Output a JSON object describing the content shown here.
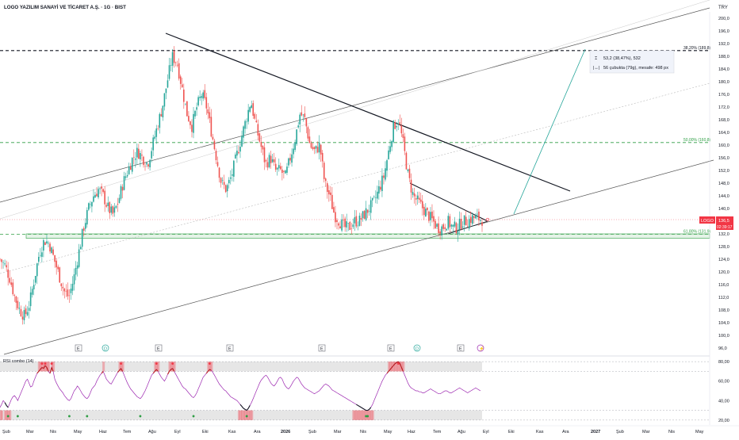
{
  "header": {
    "title": "LOGO YAZILIM SANAYİ VE TİCARET A.Ş. · 1G · BIST",
    "currency": "TRY"
  },
  "tooltip": {
    "line1": "53,2 (38,47%), 532",
    "line2": "56 çubukta (79g), mesafe: 498 px"
  },
  "price_marker": {
    "symbol": "LOGO",
    "price": "136,5",
    "countdown": "02:39:17"
  },
  "fib_levels": [
    {
      "label": "38,20% (189,8)",
      "value": 189.8
    },
    {
      "label": "50,00% (160,8)",
      "value": 160.8
    },
    {
      "label": "61,80% (131,9)",
      "value": 131.9
    }
  ],
  "event_markers": [
    "E",
    "D",
    "E",
    "E",
    "E",
    "E",
    "D",
    "E",
    "⚡"
  ],
  "rsi": {
    "title": "RSI combo (14)",
    "ticks": [
      "80,00",
      "60,00",
      "40,00",
      "20,00"
    ],
    "values": [
      33,
      36,
      40,
      38,
      35,
      33,
      37,
      41,
      44,
      45,
      43,
      40,
      44,
      48,
      52,
      56,
      60,
      62,
      58,
      54,
      55,
      60,
      64,
      68,
      70,
      72,
      74,
      73,
      76,
      74,
      70,
      68,
      74,
      70,
      62,
      58,
      55,
      52,
      50,
      48,
      45,
      43,
      41,
      40,
      42,
      46,
      50,
      52,
      55,
      53,
      50,
      47,
      45,
      43,
      42,
      44,
      48,
      52,
      54,
      56,
      60,
      63,
      66,
      68,
      70,
      66,
      62,
      60,
      58,
      57,
      60,
      63,
      66,
      69,
      71,
      73,
      70,
      66,
      62,
      58,
      55,
      52,
      50,
      48,
      46,
      44,
      43,
      42,
      44,
      47,
      50,
      54,
      58,
      62,
      66,
      68,
      70,
      72,
      70,
      67,
      64,
      62,
      60,
      63,
      67,
      70,
      72,
      73,
      70,
      67,
      64,
      61,
      58,
      55,
      53,
      52,
      50,
      48,
      46,
      44,
      43,
      45,
      48,
      52,
      56,
      60,
      64,
      66,
      68,
      70,
      72,
      71,
      69,
      66,
      63,
      60,
      57,
      55,
      53,
      51,
      50,
      48,
      46,
      44,
      43,
      42,
      41,
      40,
      38,
      36,
      34,
      32,
      31,
      30,
      32,
      35,
      38,
      42,
      46,
      50,
      54,
      58,
      61,
      63,
      65,
      66,
      64,
      61,
      58,
      56,
      55,
      57,
      60,
      63,
      64,
      62,
      58,
      55,
      53,
      52,
      54,
      57,
      60,
      62,
      64,
      63,
      60,
      57,
      55,
      53,
      52,
      51,
      50,
      49,
      48,
      47,
      48,
      49,
      50,
      52,
      54,
      56,
      57,
      56,
      55,
      53,
      51,
      50,
      49,
      48,
      47,
      46,
      45,
      44,
      43,
      42,
      41,
      40,
      39,
      38,
      37,
      36,
      35,
      34,
      33,
      32,
      31,
      30,
      30,
      31,
      33,
      36,
      40,
      44,
      48,
      52,
      56,
      60,
      63,
      66,
      68,
      70,
      72,
      74,
      76,
      78,
      79,
      80,
      78,
      74,
      70,
      66,
      62,
      58,
      55,
      53,
      52,
      51,
      50,
      50,
      49,
      49,
      48,
      48,
      49,
      50,
      51,
      52,
      51,
      50,
      49,
      48,
      47,
      47,
      48,
      49,
      50,
      50,
      49,
      48,
      48,
      49,
      50,
      51,
      52,
      53,
      52,
      51,
      50,
      49,
      48,
      49,
      50,
      51,
      52,
      53,
      52,
      51,
      50
    ]
  },
  "chart_data": {
    "type": "candlestick",
    "y_axis_ticks": [
      "200,0",
      "196,0",
      "192,0",
      "188,0",
      "184,0",
      "180,0",
      "176,0",
      "172,0",
      "168,0",
      "164,0",
      "160,0",
      "156,0",
      "152,0",
      "148,0",
      "144,0",
      "140,0",
      "136,0",
      "132,0",
      "128,0",
      "124,0",
      "120,0",
      "116,0",
      "112,0",
      "108,0",
      "104,0",
      "100,0",
      "96,0"
    ],
    "ylim": [
      96,
      202
    ],
    "x_axis_labels": [
      "Şub",
      "Mar",
      "Nis",
      "May",
      "Haz",
      "Tem",
      "Ağu",
      "Eyl",
      "Eki",
      "Kas",
      "Ara",
      "2026",
      "Şub",
      "Mar",
      "Nis",
      "May",
      "Haz",
      "Tem",
      "Ağu",
      "Eyl",
      "Eki",
      "Kas",
      "Ara",
      "2027",
      "Şub",
      "Mar",
      "Nis",
      "May"
    ],
    "last_price": 136.5,
    "close_path": [
      [
        0,
        124
      ],
      [
        2,
        122
      ],
      [
        4,
        118
      ],
      [
        6,
        112
      ],
      [
        8,
        108
      ],
      [
        10,
        106
      ],
      [
        12,
        110
      ],
      [
        14,
        118
      ],
      [
        16,
        126
      ],
      [
        18,
        130
      ],
      [
        20,
        129
      ],
      [
        22,
        124
      ],
      [
        24,
        119
      ],
      [
        26,
        114
      ],
      [
        28,
        112
      ],
      [
        30,
        118
      ],
      [
        32,
        126
      ],
      [
        34,
        134
      ],
      [
        36,
        140
      ],
      [
        38,
        144
      ],
      [
        40,
        146
      ],
      [
        42,
        144
      ],
      [
        44,
        140
      ],
      [
        46,
        138
      ],
      [
        48,
        142
      ],
      [
        50,
        148
      ],
      [
        52,
        152
      ],
      [
        54,
        156
      ],
      [
        56,
        158
      ],
      [
        58,
        156
      ],
      [
        60,
        154
      ],
      [
        62,
        160
      ],
      [
        64,
        166
      ],
      [
        66,
        172
      ],
      [
        68,
        180
      ],
      [
        70,
        188
      ],
      [
        72,
        186
      ],
      [
        74,
        178
      ],
      [
        76,
        170
      ],
      [
        78,
        166
      ],
      [
        80,
        172
      ],
      [
        82,
        176
      ],
      [
        84,
        172
      ],
      [
        86,
        164
      ],
      [
        88,
        156
      ],
      [
        90,
        148
      ],
      [
        92,
        146
      ],
      [
        94,
        150
      ],
      [
        96,
        156
      ],
      [
        98,
        162
      ],
      [
        100,
        168
      ],
      [
        102,
        174
      ],
      [
        104,
        166
      ],
      [
        106,
        160
      ],
      [
        108,
        154
      ],
      [
        110,
        156
      ],
      [
        112,
        152
      ],
      [
        114,
        152
      ],
      [
        116,
        150
      ],
      [
        118,
        156
      ],
      [
        120,
        162
      ],
      [
        122,
        170
      ],
      [
        124,
        168
      ],
      [
        126,
        160
      ],
      [
        128,
        158
      ],
      [
        130,
        160
      ],
      [
        132,
        148
      ],
      [
        134,
        144
      ],
      [
        136,
        138
      ],
      [
        138,
        136
      ],
      [
        140,
        134
      ],
      [
        142,
        134
      ],
      [
        144,
        136
      ],
      [
        146,
        136
      ],
      [
        148,
        138
      ],
      [
        150,
        140
      ],
      [
        152,
        142
      ],
      [
        154,
        146
      ],
      [
        156,
        150
      ],
      [
        158,
        158
      ],
      [
        160,
        166
      ],
      [
        162,
        168
      ],
      [
        164,
        160
      ],
      [
        166,
        150
      ],
      [
        168,
        144
      ],
      [
        170,
        142
      ],
      [
        172,
        140
      ],
      [
        174,
        138
      ],
      [
        176,
        136
      ],
      [
        178,
        134
      ],
      [
        180,
        134
      ],
      [
        182,
        136
      ],
      [
        184,
        134
      ],
      [
        186,
        134
      ],
      [
        188,
        136
      ],
      [
        190,
        136
      ],
      [
        192,
        137
      ],
      [
        194,
        137
      ],
      [
        196,
        136.5
      ]
    ]
  }
}
